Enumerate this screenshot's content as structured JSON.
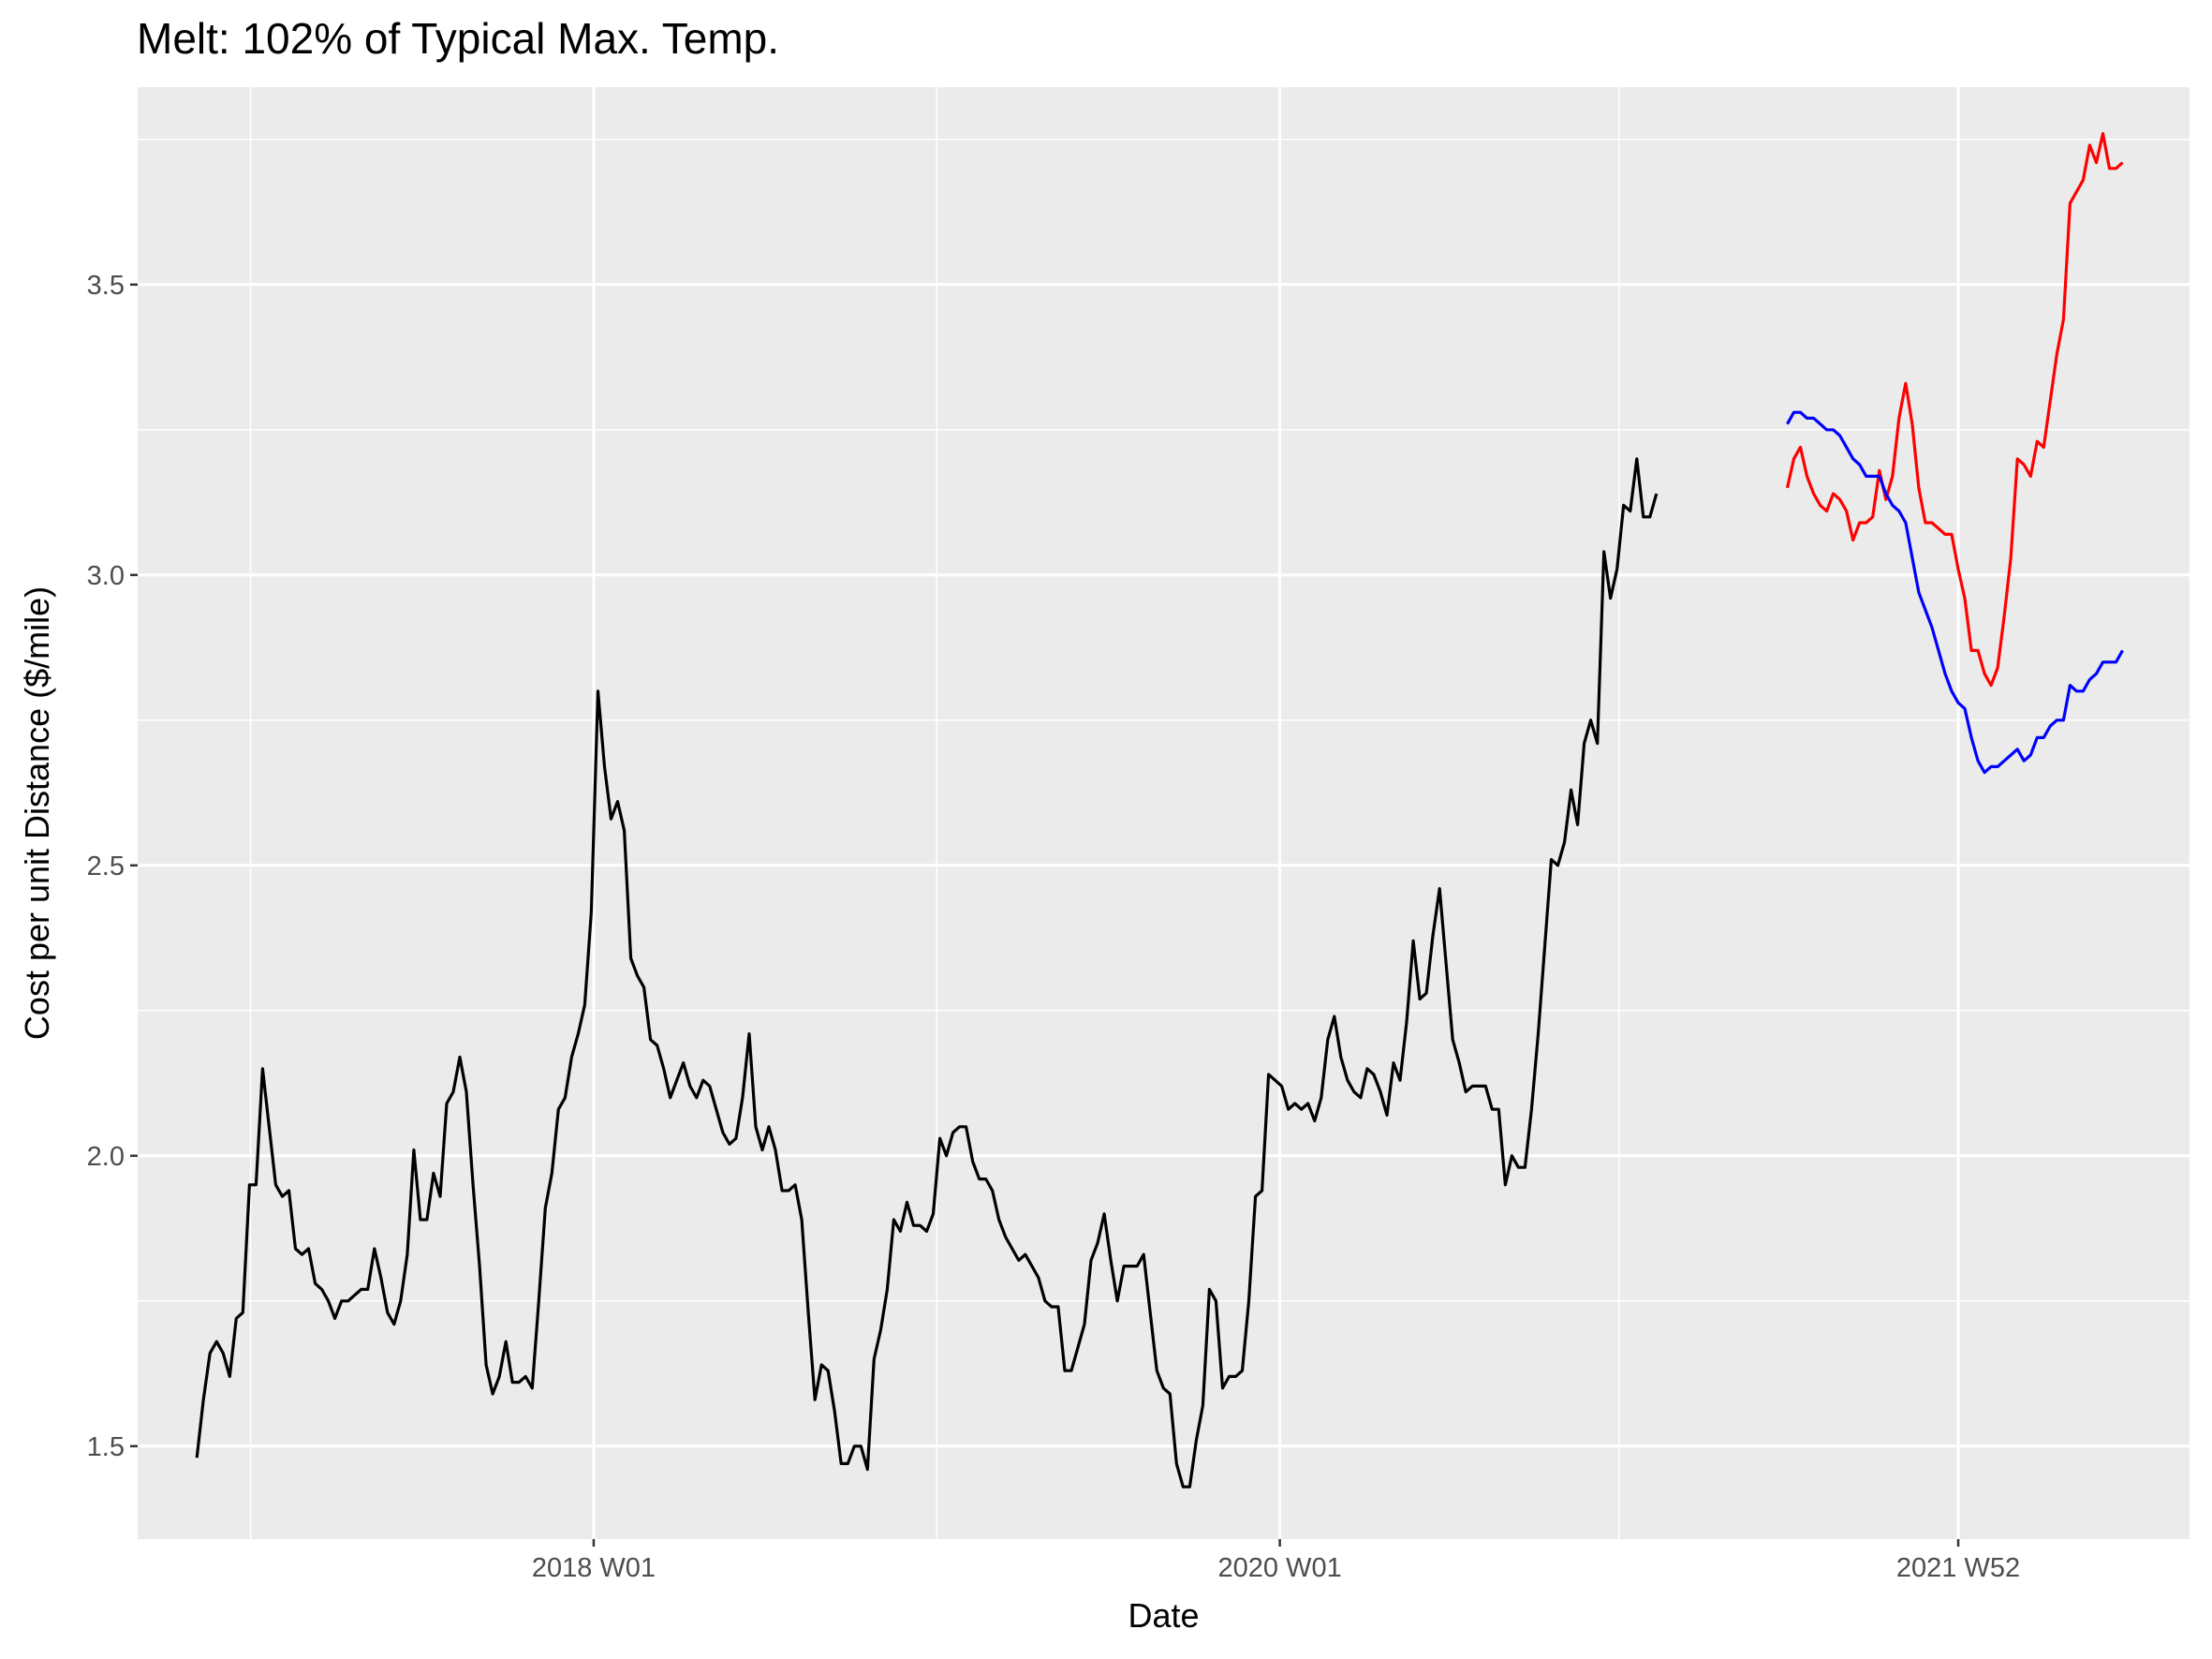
{
  "chart_data": {
    "type": "line",
    "title": "Melt: 102% of Typical Max. Temp.",
    "xlabel": "Date",
    "ylabel": "Cost per unit Distance ($/mile)",
    "x_unit": "week",
    "xlim": [
      "2016 W36",
      "2022 W35"
    ],
    "ylim": [
      1.34,
      3.84
    ],
    "x_ticks": [
      {
        "value": "2018 W01",
        "label": "2018 W01"
      },
      {
        "value": "2020 W01",
        "label": "2020 W01"
      },
      {
        "value": "2021 W52",
        "label": "2021 W52"
      }
    ],
    "y_ticks": [
      1.5,
      2.0,
      2.5,
      3.0,
      3.5
    ],
    "grid": true,
    "legend": "none",
    "colors": {
      "panel": "#EBEBEB",
      "grid": "#FFFFFF",
      "history": "#000000",
      "forecast_red": "#FF0000",
      "forecast_blue": "#0000FF"
    },
    "series": [
      {
        "color": "#000000",
        "start": "2016 W45",
        "values": [
          1.48,
          1.58,
          1.66,
          1.68,
          1.66,
          1.62,
          1.72,
          1.73,
          1.95,
          1.95,
          2.15,
          2.05,
          1.95,
          1.93,
          1.94,
          1.84,
          1.83,
          1.84,
          1.78,
          1.77,
          1.75,
          1.72,
          1.75,
          1.75,
          1.76,
          1.77,
          1.77,
          1.84,
          1.79,
          1.73,
          1.71,
          1.75,
          1.83,
          2.01,
          1.89,
          1.89,
          1.97,
          1.93,
          2.09,
          2.11,
          2.17,
          2.11,
          1.95,
          1.81,
          1.64,
          1.59,
          1.62,
          1.68,
          1.61,
          1.61,
          1.62,
          1.6,
          1.75,
          1.91,
          1.97,
          2.08,
          2.1,
          2.17,
          2.21,
          2.26,
          2.42,
          2.8,
          2.67,
          2.58,
          2.61,
          2.56,
          2.34,
          2.31,
          2.29,
          2.2,
          2.19,
          2.15,
          2.1,
          2.13,
          2.16,
          2.12,
          2.1,
          2.13,
          2.12,
          2.08,
          2.04,
          2.02,
          2.03,
          2.1,
          2.21,
          2.05,
          2.01,
          2.05,
          2.01,
          1.94,
          1.94,
          1.95,
          1.89,
          1.73,
          1.58,
          1.64,
          1.63,
          1.56,
          1.47,
          1.47,
          1.5,
          1.5,
          1.46,
          1.65,
          1.7,
          1.77,
          1.89,
          1.87,
          1.92,
          1.88,
          1.88,
          1.87,
          1.9,
          2.03,
          2.0,
          2.04,
          2.05,
          2.05,
          1.99,
          1.96,
          1.96,
          1.94,
          1.89,
          1.86,
          1.84,
          1.82,
          1.83,
          1.81,
          1.79,
          1.75,
          1.74,
          1.74,
          1.63,
          1.63,
          1.67,
          1.71,
          1.82,
          1.85,
          1.9,
          1.82,
          1.75,
          1.81,
          1.81,
          1.81,
          1.83,
          1.73,
          1.63,
          1.6,
          1.59,
          1.47,
          1.43,
          1.43,
          1.51,
          1.57,
          1.77,
          1.75,
          1.6,
          1.62,
          1.62,
          1.63,
          1.75,
          1.93,
          1.94,
          2.14,
          2.13,
          2.12,
          2.08,
          2.09,
          2.08,
          2.09,
          2.06,
          2.1,
          2.2,
          2.24,
          2.17,
          2.13,
          2.11,
          2.1,
          2.15,
          2.14,
          2.11,
          2.07,
          2.16,
          2.13,
          2.23,
          2.37,
          2.27,
          2.28,
          2.38,
          2.46,
          2.33,
          2.2,
          2.16,
          2.11,
          2.12,
          2.12,
          2.12,
          2.08,
          2.08,
          1.95,
          2.0,
          1.98,
          1.98,
          2.08,
          2.21,
          2.36,
          2.51,
          2.5,
          2.54,
          2.63,
          2.57,
          2.71,
          2.75,
          2.71,
          3.04,
          2.96,
          3.01,
          3.12,
          3.11,
          3.2,
          3.1,
          3.1,
          3.14
        ]
      },
      {
        "color": "#FF0000",
        "start": "2021 W26",
        "values": [
          3.15,
          3.2,
          3.22,
          3.17,
          3.14,
          3.12,
          3.11,
          3.14,
          3.13,
          3.11,
          3.06,
          3.09,
          3.09,
          3.1,
          3.18,
          3.13,
          3.17,
          3.27,
          3.33,
          3.26,
          3.15,
          3.09,
          3.09,
          3.08,
          3.07,
          3.07,
          3.01,
          2.96,
          2.87,
          2.87,
          2.83,
          2.81,
          2.84,
          2.93,
          3.03,
          3.2,
          3.19,
          3.17,
          3.23,
          3.22,
          3.3,
          3.38,
          3.44,
          3.64,
          3.66,
          3.68,
          3.74,
          3.71,
          3.76,
          3.7,
          3.7,
          3.71
        ]
      },
      {
        "color": "#0000FF",
        "start": "2021 W26",
        "values": [
          3.26,
          3.28,
          3.28,
          3.27,
          3.27,
          3.26,
          3.25,
          3.25,
          3.24,
          3.22,
          3.2,
          3.19,
          3.17,
          3.17,
          3.17,
          3.14,
          3.12,
          3.11,
          3.09,
          3.03,
          2.97,
          2.94,
          2.91,
          2.87,
          2.83,
          2.8,
          2.78,
          2.77,
          2.72,
          2.68,
          2.66,
          2.67,
          2.67,
          2.68,
          2.69,
          2.7,
          2.68,
          2.69,
          2.72,
          2.72,
          2.74,
          2.75,
          2.75,
          2.81,
          2.8,
          2.8,
          2.82,
          2.83,
          2.85,
          2.85,
          2.85,
          2.87
        ]
      }
    ]
  }
}
